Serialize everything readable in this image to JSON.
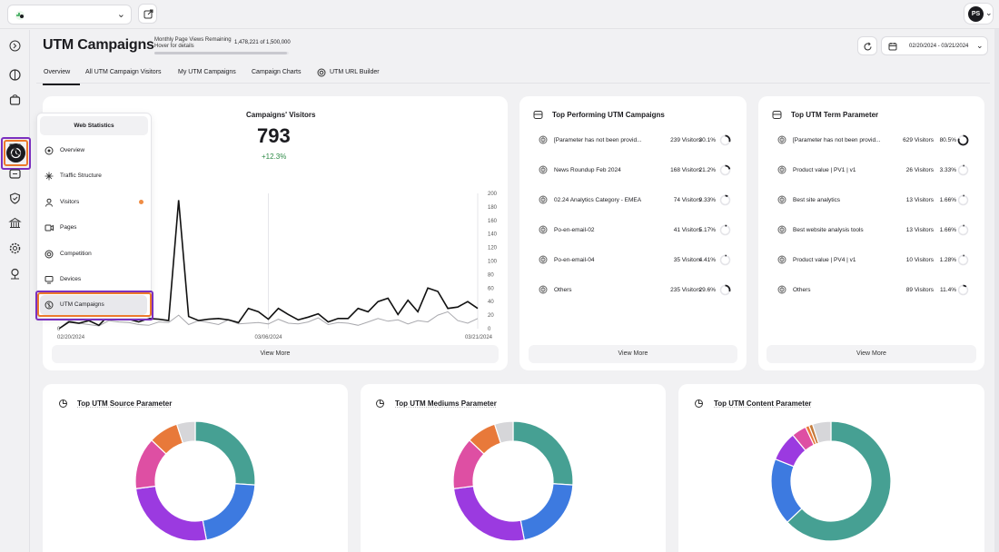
{
  "topbar": {
    "account_initials": "PS"
  },
  "header": {
    "title": "UTM Campaigns",
    "pageviews_label": "Monthly Page Views Remaining",
    "pageviews_hover": "Hover for details",
    "pageviews_count": "1,478,221 of 1,500,000",
    "pageviews_remaining_fraction": 0.985,
    "date_range": "02/20/2024 - 03/21/2024"
  },
  "tabs": [
    {
      "label": "Overview",
      "active": true
    },
    {
      "label": "All UTM Campaign Visitors"
    },
    {
      "label": "My UTM Campaigns"
    },
    {
      "label": "Campaign Charts"
    },
    {
      "label": "UTM URL Builder"
    }
  ],
  "visitors_card": {
    "title": "Campaigns' Visitors",
    "total": "793",
    "growth": "+12.3%",
    "view_more": "View More"
  },
  "chart_data": {
    "type": "line",
    "x_tick_labels": [
      "02/20/2024",
      "03/06/2024",
      "03/21/2024"
    ],
    "y_ticks": [
      0,
      20,
      40,
      60,
      80,
      100,
      120,
      140,
      160,
      180,
      200
    ],
    "y_tick_labels": [
      "0",
      "20",
      "40",
      "60",
      "80",
      "100",
      "120",
      "140",
      "160",
      "180",
      "200"
    ],
    "ylim": [
      0,
      200
    ],
    "left_axis_tick_labels": [
      "0"
    ],
    "series": [
      {
        "color": "#111111",
        "values": [
          0,
          10,
          8,
          12,
          5,
          20,
          15,
          14,
          10,
          15,
          14,
          12,
          190,
          18,
          12,
          14,
          15,
          13,
          9,
          30,
          25,
          14,
          30,
          21,
          13,
          17,
          22,
          10,
          15,
          15,
          30,
          25,
          40,
          45,
          21,
          42,
          25,
          60,
          55,
          30,
          32,
          40,
          30
        ]
      },
      {
        "color": "#a9a9ae",
        "values": [
          0,
          12,
          8,
          6,
          4,
          12,
          10,
          9,
          6,
          5,
          10,
          9,
          20,
          6,
          12,
          9,
          6,
          13,
          7,
          8,
          9,
          7,
          14,
          8,
          7,
          10,
          16,
          6,
          9,
          8,
          5,
          10,
          15,
          11,
          13,
          7,
          12,
          10,
          20,
          25,
          12,
          8,
          15
        ]
      }
    ],
    "grid": false
  },
  "top_campaigns": {
    "title": "Top Performing UTM Campaigns",
    "rows": [
      {
        "name": "[Parameter has not been provid...",
        "visitors": "239 Visitors",
        "pct": "30.1%",
        "fraction": 0.301
      },
      {
        "name": "News Roundup Feb 2024",
        "visitors": "168 Visitors",
        "pct": "21.2%",
        "fraction": 0.212
      },
      {
        "name": "02.24 Analytics Category - EMEA",
        "visitors": "74 Visitors",
        "pct": "9.33%",
        "fraction": 0.093
      },
      {
        "name": "Po-en-email-02",
        "visitors": "41 Visitors",
        "pct": "5.17%",
        "fraction": 0.052
      },
      {
        "name": "Po-en-email-04",
        "visitors": "35 Visitors",
        "pct": "4.41%",
        "fraction": 0.044
      },
      {
        "name": "Others",
        "visitors": "235 Visitors",
        "pct": "29.6%",
        "fraction": 0.296
      }
    ],
    "view_more": "View More"
  },
  "top_term": {
    "title": "Top UTM Term Parameter",
    "rows": [
      {
        "name": "[Parameter has not been provid...",
        "visitors": "629 Visitors",
        "pct": "80.5%",
        "fraction": 0.805
      },
      {
        "name": "Product value | PV1 | v1",
        "visitors": "26 Visitors",
        "pct": "3.33%",
        "fraction": 0.033
      },
      {
        "name": "Best site analytics",
        "visitors": "13 Visitors",
        "pct": "1.66%",
        "fraction": 0.017
      },
      {
        "name": "Best website analysis tools",
        "visitors": "13 Visitors",
        "pct": "1.66%",
        "fraction": 0.017
      },
      {
        "name": "Product value | PV4 | v1",
        "visitors": "10 Visitors",
        "pct": "1.28%",
        "fraction": 0.013
      },
      {
        "name": "Others",
        "visitors": "89 Visitors",
        "pct": "11.4%",
        "fraction": 0.114
      }
    ],
    "view_more": "View More"
  },
  "donuts": [
    {
      "title": "Top UTM Source Parameter",
      "slices": [
        {
          "value": 0.26,
          "color": "#46a093"
        },
        {
          "value": 0.21,
          "color": "#3d7ae0"
        },
        {
          "value": 0.26,
          "color": "#9b3ae0"
        },
        {
          "value": 0.14,
          "color": "#de4fa3"
        },
        {
          "value": 0.08,
          "color": "#e8793a"
        },
        {
          "value": 0.05,
          "color": "#d6d6d9"
        }
      ]
    },
    {
      "title": "Top UTM Mediums Parameter",
      "slices": [
        {
          "value": 0.26,
          "color": "#46a093"
        },
        {
          "value": 0.21,
          "color": "#3d7ae0"
        },
        {
          "value": 0.26,
          "color": "#9b3ae0"
        },
        {
          "value": 0.14,
          "color": "#de4fa3"
        },
        {
          "value": 0.08,
          "color": "#e8793a"
        },
        {
          "value": 0.05,
          "color": "#d6d6d9"
        }
      ]
    },
    {
      "title": "Top UTM Content Parameter",
      "slices": [
        {
          "value": 0.63,
          "color": "#46a093"
        },
        {
          "value": 0.18,
          "color": "#3d7ae0"
        },
        {
          "value": 0.08,
          "color": "#9b3ae0"
        },
        {
          "value": 0.04,
          "color": "#de4fa3"
        },
        {
          "value": 0.01,
          "color": "#e8793a"
        },
        {
          "value": 0.01,
          "color": "#c47a3a"
        },
        {
          "value": 0.05,
          "color": "#d6d6d9"
        }
      ]
    }
  ],
  "nav_menu": {
    "header": "Web Statistics",
    "items": [
      {
        "label": "Overview",
        "icon": "overview-icon"
      },
      {
        "label": "Traffic Structure",
        "icon": "traffic-structure-icon"
      },
      {
        "label": "Visitors",
        "icon": "visitors-icon",
        "dot_color": "#ef8c44"
      },
      {
        "label": "Pages",
        "icon": "pages-icon"
      },
      {
        "label": "Competition",
        "icon": "competition-icon"
      },
      {
        "label": "Devices",
        "icon": "devices-icon"
      },
      {
        "label": "UTM Campaigns",
        "icon": "utm-campaigns-icon",
        "active": true
      }
    ]
  },
  "rail_icons": [
    "collapse-icon",
    "dashboard-icon",
    "ecommerce-icon",
    "web-statistics-icon",
    "heatmap-icon",
    "conversion-icon",
    "security-icon",
    "reports-icon",
    "settings-icon",
    "location-icon"
  ],
  "colors": {
    "accent_orange": "#ec7a2c",
    "highlight_purple": "#7b2fbe",
    "growth_green": "#2e8a47"
  }
}
